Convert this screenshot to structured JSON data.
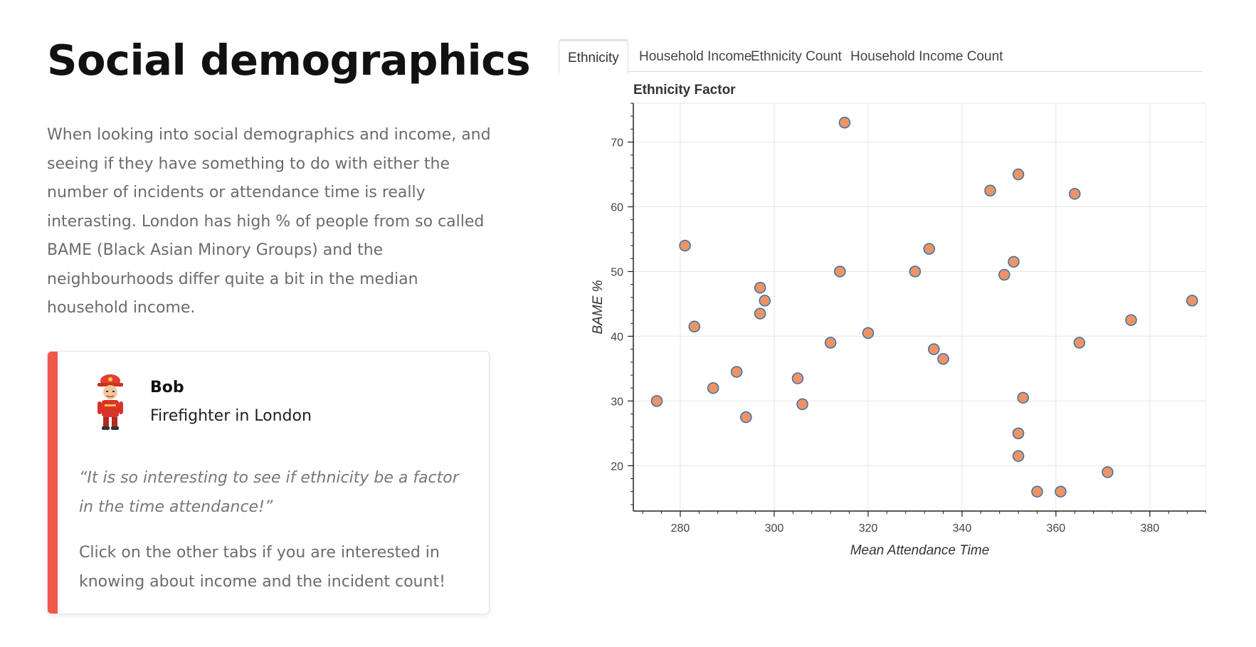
{
  "left": {
    "title": "Social demographics",
    "intro": "When looking into social demographics and income, and seeing if they have something to do with either the number of incidents or attendance time is really interasting. London has high % of people from so called BAME (Black Asian Minory Groups) and the neighbourhoods differ quite a bit in the median household income."
  },
  "card": {
    "name": "Bob",
    "role": "Firefighter in London",
    "quote": "“It is so interesting to see if ethnicity be a factor in the time attendance!”",
    "note": "Click on the other tabs if you are interested in knowing about income and the incident count!",
    "accent_color": "#f0594a"
  },
  "tabs": [
    {
      "label": "Ethnicity",
      "active": true
    },
    {
      "label": "Household Income",
      "active": false
    },
    {
      "label": "Ethnicity Count",
      "active": false
    },
    {
      "label": "Household Income Count",
      "active": false
    }
  ],
  "chart_data": {
    "type": "scatter",
    "title": "Ethnicity Factor",
    "xlabel": "Mean Attendance Time",
    "ylabel": "BAME %",
    "xlim": [
      270,
      392
    ],
    "ylim": [
      13,
      76
    ],
    "xticks": [
      280,
      300,
      320,
      340,
      360,
      380
    ],
    "yticks": [
      20,
      30,
      40,
      50,
      60,
      70
    ],
    "grid": true,
    "marker_fill": "#ec9465",
    "marker_stroke": "#3b6ea8",
    "x": [
      275,
      281,
      283,
      287,
      292,
      294,
      297,
      297,
      298,
      305,
      306,
      312,
      314,
      315,
      320,
      330,
      333,
      334,
      336,
      346,
      349,
      351,
      352,
      352,
      352,
      353,
      356,
      361,
      364,
      365,
      371,
      376,
      389
    ],
    "y": [
      30,
      54,
      41.5,
      32,
      34.5,
      27.5,
      47.5,
      43.5,
      45.5,
      33.5,
      29.5,
      39,
      50,
      73,
      40.5,
      50,
      53.5,
      38,
      36.5,
      62.5,
      49.5,
      51.5,
      65,
      25,
      21.5,
      30.5,
      16,
      16,
      62,
      39,
      19,
      42.5,
      45.5
    ]
  }
}
